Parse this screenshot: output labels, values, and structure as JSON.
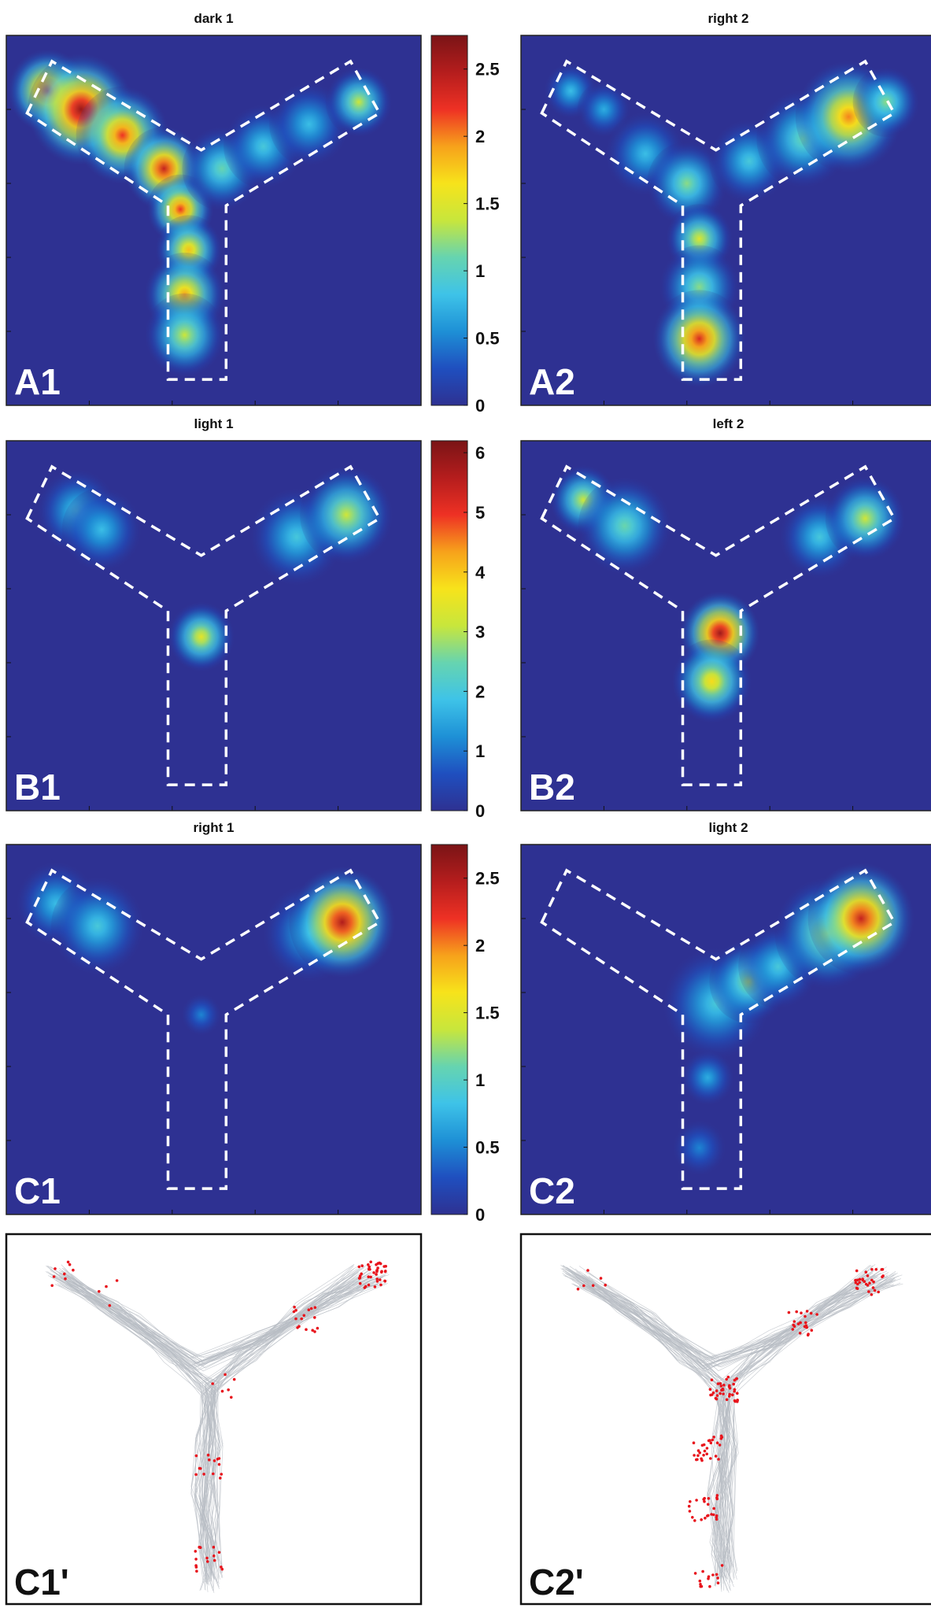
{
  "figure": {
    "colormap": [
      "#2e3192",
      "#1f4fbf",
      "#1e90d6",
      "#3ec3e8",
      "#66d4b0",
      "#c8e63c",
      "#f7e31b",
      "#f7a21b",
      "#ee3124",
      "#b51d1d",
      "#7a1416"
    ],
    "background_color": "#2e3192",
    "dash_color": "#ffffff",
    "trajectory_color": "#b7bcc3",
    "spike_color": "#e8141c"
  },
  "chart_data": [
    {
      "type": "heatmap",
      "id": "A1",
      "label": "A1",
      "title": "dark 1",
      "colorbar": "row1",
      "blobs": [
        {
          "x": 0.1,
          "y": 0.15,
          "v": 2.3,
          "s": 0.03
        },
        {
          "x": 0.18,
          "y": 0.2,
          "v": 2.6,
          "s": 0.04
        },
        {
          "x": 0.28,
          "y": 0.27,
          "v": 2.2,
          "s": 0.035
        },
        {
          "x": 0.38,
          "y": 0.36,
          "v": 2.4,
          "s": 0.03
        },
        {
          "x": 0.42,
          "y": 0.47,
          "v": 2.2,
          "s": 0.025
        },
        {
          "x": 0.44,
          "y": 0.58,
          "v": 1.8,
          "s": 0.025
        },
        {
          "x": 0.43,
          "y": 0.7,
          "v": 1.9,
          "s": 0.03
        },
        {
          "x": 0.43,
          "y": 0.81,
          "v": 1.4,
          "s": 0.03
        },
        {
          "x": 0.52,
          "y": 0.36,
          "v": 1.1,
          "s": 0.03
        },
        {
          "x": 0.62,
          "y": 0.3,
          "v": 0.9,
          "s": 0.03
        },
        {
          "x": 0.73,
          "y": 0.24,
          "v": 0.8,
          "s": 0.03
        },
        {
          "x": 0.85,
          "y": 0.18,
          "v": 1.4,
          "s": 0.025
        }
      ]
    },
    {
      "type": "heatmap",
      "id": "A2",
      "label": "A2",
      "title": "right 2",
      "colorbar": null,
      "blobs": [
        {
          "x": 0.12,
          "y": 0.15,
          "v": 0.8,
          "s": 0.02
        },
        {
          "x": 0.2,
          "y": 0.2,
          "v": 0.7,
          "s": 0.02
        },
        {
          "x": 0.3,
          "y": 0.32,
          "v": 0.8,
          "s": 0.03
        },
        {
          "x": 0.4,
          "y": 0.4,
          "v": 1.2,
          "s": 0.03
        },
        {
          "x": 0.43,
          "y": 0.55,
          "v": 1.5,
          "s": 0.025
        },
        {
          "x": 0.43,
          "y": 0.68,
          "v": 1.2,
          "s": 0.03
        },
        {
          "x": 0.43,
          "y": 0.82,
          "v": 2.3,
          "s": 0.035
        },
        {
          "x": 0.55,
          "y": 0.34,
          "v": 0.9,
          "s": 0.03
        },
        {
          "x": 0.68,
          "y": 0.28,
          "v": 1.1,
          "s": 0.035
        },
        {
          "x": 0.79,
          "y": 0.22,
          "v": 2.0,
          "s": 0.04
        },
        {
          "x": 0.88,
          "y": 0.18,
          "v": 1.2,
          "s": 0.025
        }
      ]
    },
    {
      "type": "heatmap",
      "id": "B1",
      "label": "B1",
      "title": "light 1",
      "colorbar": "row2",
      "blobs": [
        {
          "x": 0.17,
          "y": 0.19,
          "v": 2.0,
          "s": 0.03
        },
        {
          "x": 0.23,
          "y": 0.24,
          "v": 1.8,
          "s": 0.03
        },
        {
          "x": 0.47,
          "y": 0.53,
          "v": 3.5,
          "s": 0.025
        },
        {
          "x": 0.7,
          "y": 0.26,
          "v": 2.0,
          "s": 0.035
        },
        {
          "x": 0.82,
          "y": 0.2,
          "v": 3.2,
          "s": 0.035
        }
      ]
    },
    {
      "type": "heatmap",
      "id": "B2",
      "label": "B2",
      "title": "left 2",
      "colorbar": null,
      "blobs": [
        {
          "x": 0.15,
          "y": 0.16,
          "v": 3.2,
          "s": 0.025
        },
        {
          "x": 0.25,
          "y": 0.23,
          "v": 2.5,
          "s": 0.035
        },
        {
          "x": 0.48,
          "y": 0.52,
          "v": 5.8,
          "s": 0.03
        },
        {
          "x": 0.46,
          "y": 0.65,
          "v": 3.8,
          "s": 0.03
        },
        {
          "x": 0.72,
          "y": 0.26,
          "v": 2.0,
          "s": 0.03
        },
        {
          "x": 0.83,
          "y": 0.21,
          "v": 3.2,
          "s": 0.03
        }
      ]
    },
    {
      "type": "heatmap",
      "id": "C1",
      "label": "C1",
      "title": "right 1",
      "colorbar": "row3",
      "blobs": [
        {
          "x": 0.12,
          "y": 0.16,
          "v": 0.8,
          "s": 0.03
        },
        {
          "x": 0.22,
          "y": 0.22,
          "v": 0.9,
          "s": 0.035
        },
        {
          "x": 0.47,
          "y": 0.46,
          "v": 0.5,
          "s": 0.015
        },
        {
          "x": 0.73,
          "y": 0.24,
          "v": 0.8,
          "s": 0.035
        },
        {
          "x": 0.81,
          "y": 0.21,
          "v": 2.5,
          "s": 0.04
        }
      ]
    },
    {
      "type": "heatmap",
      "id": "C2",
      "label": "C2",
      "title": "light 2",
      "colorbar": null,
      "blobs": [
        {
          "x": 0.47,
          "y": 0.43,
          "v": 0.9,
          "s": 0.04
        },
        {
          "x": 0.55,
          "y": 0.37,
          "v": 1.3,
          "s": 0.03
        },
        {
          "x": 0.62,
          "y": 0.33,
          "v": 0.9,
          "s": 0.03
        },
        {
          "x": 0.45,
          "y": 0.63,
          "v": 0.7,
          "s": 0.02
        },
        {
          "x": 0.43,
          "y": 0.82,
          "v": 0.5,
          "s": 0.02
        },
        {
          "x": 0.74,
          "y": 0.24,
          "v": 1.4,
          "s": 0.04
        },
        {
          "x": 0.82,
          "y": 0.2,
          "v": 2.4,
          "s": 0.04
        }
      ]
    },
    {
      "type": "scatter",
      "id": "C1p",
      "label": "C1'",
      "title": "",
      "spike_clusters": [
        {
          "x": 0.14,
          "y": 0.11,
          "n": 8
        },
        {
          "x": 0.24,
          "y": 0.16,
          "n": 4
        },
        {
          "x": 0.52,
          "y": 0.41,
          "n": 6
        },
        {
          "x": 0.49,
          "y": 0.63,
          "n": 14
        },
        {
          "x": 0.49,
          "y": 0.88,
          "n": 16
        },
        {
          "x": 0.72,
          "y": 0.23,
          "n": 16
        },
        {
          "x": 0.88,
          "y": 0.11,
          "n": 40
        }
      ]
    },
    {
      "type": "scatter",
      "id": "C2p",
      "label": "C2'",
      "title": "",
      "spike_clusters": [
        {
          "x": 0.17,
          "y": 0.12,
          "n": 6
        },
        {
          "x": 0.49,
          "y": 0.42,
          "n": 40
        },
        {
          "x": 0.45,
          "y": 0.58,
          "n": 28
        },
        {
          "x": 0.44,
          "y": 0.74,
          "n": 24
        },
        {
          "x": 0.45,
          "y": 0.92,
          "n": 14
        },
        {
          "x": 0.68,
          "y": 0.24,
          "n": 24
        },
        {
          "x": 0.84,
          "y": 0.13,
          "n": 30
        }
      ]
    }
  ],
  "colorbars": {
    "row1": {
      "max": 2.75,
      "ticks": [
        "0",
        "0.5",
        "1",
        "1.5",
        "2",
        "2.5"
      ],
      "values": [
        0,
        0.5,
        1,
        1.5,
        2,
        2.5
      ]
    },
    "row2": {
      "max": 6.2,
      "ticks": [
        "0",
        "1",
        "2",
        "3",
        "4",
        "5",
        "6"
      ],
      "values": [
        0,
        1,
        2,
        3,
        4,
        5,
        6
      ]
    },
    "row3": {
      "max": 2.75,
      "ticks": [
        "0",
        "0.5",
        "1",
        "1.5",
        "2",
        "2.5"
      ],
      "values": [
        0,
        0.5,
        1,
        1.5,
        2,
        2.5
      ]
    }
  }
}
